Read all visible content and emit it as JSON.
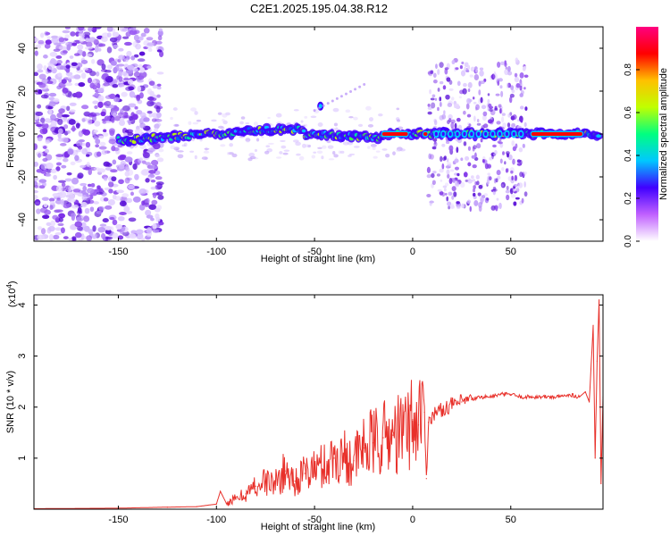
{
  "title": "C2E1.2025.195.04.38.R12",
  "colors": {
    "snr_line": "#e8302a",
    "scatter_base": "#b490f0",
    "axis": "#000000",
    "background": "#ffffff"
  },
  "chart_data": [
    {
      "type": "heatmap",
      "xlabel": "Height of straight line (km)",
      "ylabel": "Frequency (Hz)",
      "xlim": [
        -193,
        97
      ],
      "ylim": [
        -50,
        50
      ],
      "x_ticks": [
        -150,
        -100,
        -50,
        0,
        50
      ],
      "x_tick_labels": [
        "-150",
        "-100",
        "-50",
        "0",
        "50"
      ],
      "y_ticks": [
        -40,
        -20,
        0,
        20,
        40
      ],
      "y_tick_labels": [
        "-40",
        "-20",
        "0",
        "20",
        "40"
      ],
      "colorbar": {
        "label": "Normalized spectral amplitude",
        "range": [
          0,
          1
        ],
        "ticks": [
          0.0,
          0.2,
          0.4,
          0.6,
          0.8
        ],
        "tick_labels": [
          "0.0",
          "0.2",
          "0.4",
          "0.6",
          "0.8"
        ],
        "colormap": [
          "#ffffff",
          "#c060ff",
          "#4000ff",
          "#00c8ff",
          "#00ff80",
          "#c0ff00",
          "#ffc000",
          "#ff0000",
          "#ff0080"
        ]
      },
      "grid": false
    },
    {
      "type": "line",
      "xlabel": "Height of straight line (km)",
      "ylabel": "SNR (10 * v/v)",
      "y_multiplier": "(x10",
      "y_multiplier_exp": "4",
      "y_multiplier_close": ")",
      "xlim": [
        -193,
        97
      ],
      "ylim": [
        0,
        4.2
      ],
      "x_ticks": [
        -150,
        -100,
        -50,
        0,
        50
      ],
      "x_tick_labels": [
        "-150",
        "-100",
        "-50",
        "0",
        "50"
      ],
      "y_ticks": [
        1,
        2,
        3,
        4
      ],
      "y_tick_labels": [
        "1",
        "2",
        "3",
        "4"
      ],
      "series": [
        {
          "color": "#e8302a",
          "x": [
            -193,
            -150,
            -125,
            -110,
            -100,
            -98,
            -95,
            -90,
            -85,
            -80,
            -75,
            -70,
            -65,
            -60,
            -55,
            -50,
            -45,
            -40,
            -35,
            -30,
            -25,
            -20,
            -15,
            -10,
            -5,
            0,
            3,
            5,
            6,
            7,
            8,
            10,
            15,
            20,
            25,
            30,
            35,
            40,
            45,
            50,
            55,
            60,
            65,
            70,
            75,
            80,
            85,
            88,
            90,
            92,
            93,
            94,
            95,
            96,
            97
          ],
          "y": [
            0.01,
            0.02,
            0.04,
            0.05,
            0.1,
            0.35,
            0.12,
            0.2,
            0.3,
            0.45,
            0.55,
            0.5,
            0.75,
            0.55,
            0.7,
            0.8,
            0.85,
            1.0,
            1.05,
            0.95,
            1.2,
            1.3,
            1.4,
            1.45,
            1.5,
            1.75,
            1.65,
            2.5,
            1.9,
            0.6,
            1.7,
            1.85,
            1.95,
            2.05,
            2.1,
            2.15,
            2.2,
            2.2,
            2.25,
            2.25,
            2.2,
            2.2,
            2.2,
            2.2,
            2.2,
            2.25,
            2.2,
            2.3,
            2.1,
            3.6,
            1.0,
            2.9,
            4.1,
            0.5,
            2.2
          ]
        }
      ],
      "grid": false
    }
  ]
}
